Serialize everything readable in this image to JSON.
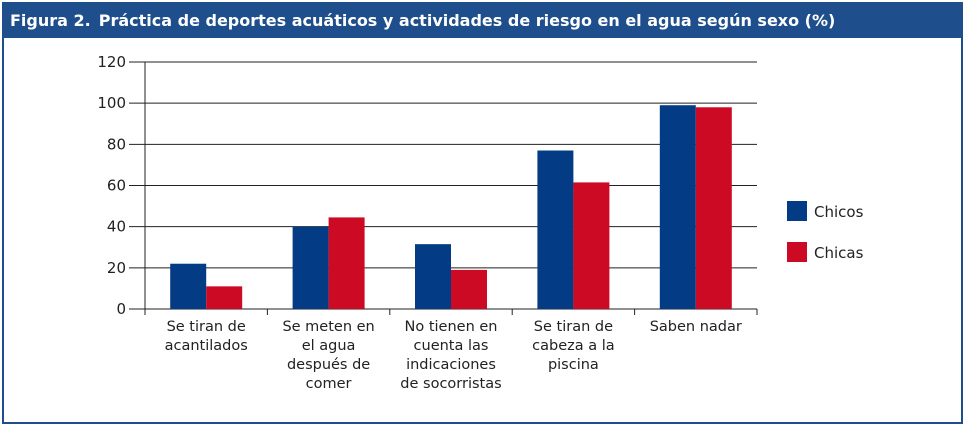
{
  "figure": {
    "number": "Figura 2.",
    "title": "Práctica de deportes acuáticos y actividades de riesgo en el agua según sexo (%)"
  },
  "colors": {
    "frame": "#1f4e8c",
    "Chicos": "#043b85",
    "Chicas": "#cc0a24"
  },
  "chart_data": {
    "type": "bar",
    "title": "Práctica de deportes acuáticos y actividades de riesgo en el agua según sexo (%)",
    "categories": [
      [
        "Se tiran de",
        "acantilados"
      ],
      [
        "Se meten en",
        "el agua",
        "después de",
        "comer"
      ],
      [
        "No tienen en",
        "cuenta las",
        "indicaciones",
        "de socorristas"
      ],
      [
        "Se tiran de",
        "cabeza a la",
        "piscina"
      ],
      [
        "Saben nadar"
      ]
    ],
    "series": [
      {
        "name": "Chicos",
        "values": [
          22,
          40,
          31.5,
          77,
          99
        ]
      },
      {
        "name": "Chicas",
        "values": [
          11,
          44.5,
          19,
          61.5,
          98
        ]
      }
    ],
    "ylim": [
      0,
      120
    ],
    "yticks": [
      0,
      20,
      40,
      60,
      80,
      100,
      120
    ],
    "grid": true,
    "legend": "right"
  }
}
